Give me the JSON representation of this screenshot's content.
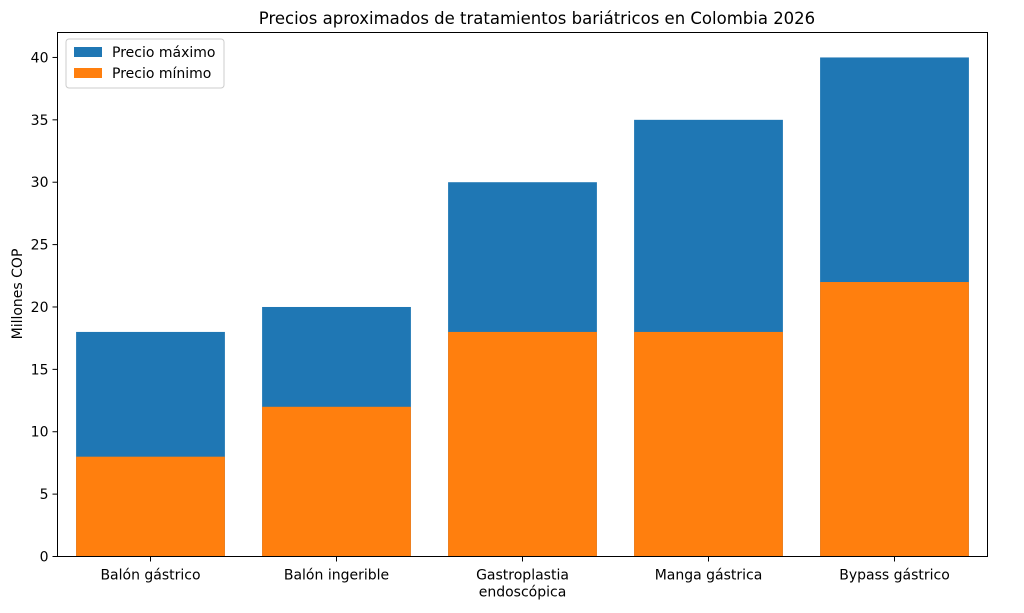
{
  "chart_data": {
    "type": "bar",
    "stacking": "overlay",
    "title": "Precios aproximados de tratamientos bariátricos en Colombia 2026",
    "xlabel": "",
    "ylabel": "Millones COP",
    "categories": [
      "Balón gástrico",
      "Balón ingerible",
      "Gastroplastia endoscópica",
      "Manga gástrica",
      "Bypass gástrico"
    ],
    "series": [
      {
        "name": "Precio máximo",
        "values": [
          18,
          20,
          30,
          35,
          40
        ],
        "color": "#1f77b4"
      },
      {
        "name": "Precio mínimo",
        "values": [
          8,
          12,
          18,
          18,
          22
        ],
        "color": "#ff7f0e"
      }
    ],
    "ylim": [
      0,
      42
    ],
    "yticks": [
      0,
      5,
      10,
      15,
      20,
      25,
      30,
      35,
      40
    ],
    "grid": false,
    "legend": "top-left"
  }
}
